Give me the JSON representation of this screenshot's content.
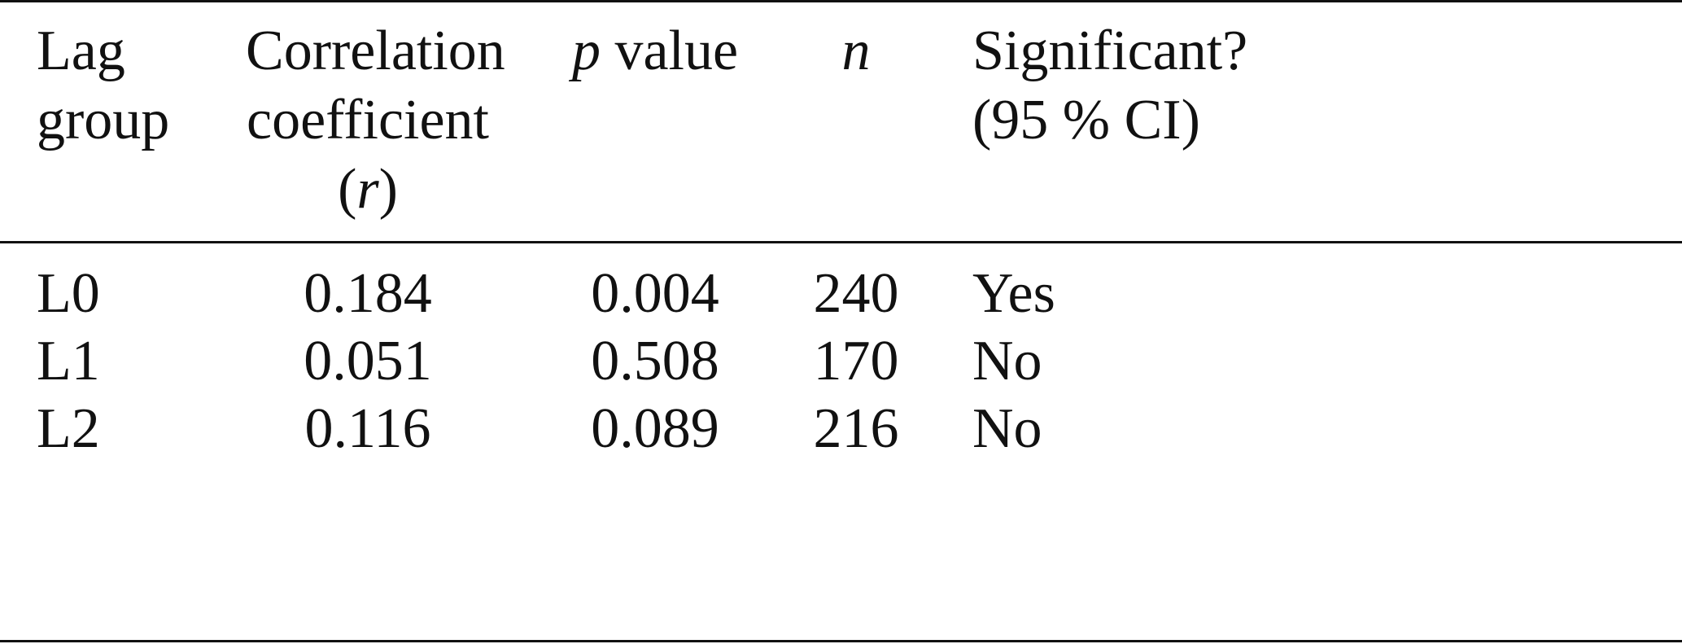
{
  "header": {
    "columns": [
      {
        "lines": [
          [
            {
              "text": "Lag"
            }
          ],
          [
            {
              "text": "group"
            }
          ]
        ]
      },
      {
        "lines": [
          [
            {
              "text": "Correlation"
            }
          ],
          [
            {
              "text": "coefficient"
            }
          ],
          [
            {
              "text": "("
            },
            {
              "text": "r",
              "italic": true
            },
            {
              "text": ")"
            }
          ]
        ]
      },
      {
        "lines": [
          [
            {
              "text": "p",
              "italic": true
            },
            {
              "text": " value"
            }
          ]
        ]
      },
      {
        "lines": [
          [
            {
              "text": "n",
              "italic": true
            }
          ]
        ]
      },
      {
        "lines": [
          [
            {
              "text": "Significant?"
            }
          ],
          [
            {
              "text": "(95 % CI)"
            }
          ]
        ]
      }
    ]
  },
  "table": {
    "rows": [
      [
        "L0",
        "0.184",
        "0.004",
        "240",
        "Yes"
      ],
      [
        "L1",
        "0.051",
        "0.508",
        "170",
        "No"
      ],
      [
        "L2",
        "0.116",
        "0.089",
        "216",
        "No"
      ]
    ]
  }
}
